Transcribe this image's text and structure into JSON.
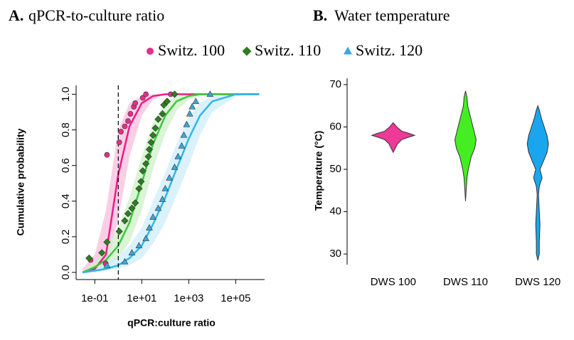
{
  "chart_data": [
    {
      "type": "scatter",
      "panel_label": "A.",
      "title": "qPCR-to-culture ratio",
      "xlabel": "qPCR:culture ratio",
      "ylabel": "Cumulative probability",
      "xscale": "log",
      "xlim": [
        0.016,
        1700000
      ],
      "xticks": [
        {
          "value": 0.1,
          "label": "1e-01"
        },
        {
          "value": 10,
          "label": "1e+01"
        },
        {
          "value": 1000,
          "label": "1e+03"
        },
        {
          "value": 100000,
          "label": "1e+05"
        }
      ],
      "ylim": [
        -0.04,
        1.05
      ],
      "yticks": [
        {
          "value": 0,
          "label": "0.0"
        },
        {
          "value": 0.2,
          "label": "0.2"
        },
        {
          "value": 0.4,
          "label": "0.4"
        },
        {
          "value": 0.6,
          "label": "0.6"
        },
        {
          "value": 0.8,
          "label": "0.8"
        },
        {
          "value": 1,
          "label": "1.0"
        }
      ],
      "reference_x": 1,
      "fit_x": [
        0.03,
        0.1,
        0.3,
        1,
        3,
        10,
        30,
        100,
        300,
        1000,
        3000,
        10000,
        100000,
        1000000
      ],
      "series": [
        {
          "name": "Switz. 100",
          "marker": "circle",
          "color": "#e0308a",
          "line_color": "#ee1b8a",
          "band_color": "#f8bfdc",
          "x": [
            0.066,
            0.29,
            0.33,
            1.1,
            1.3,
            1.9,
            2.6,
            3.3,
            4.6,
            5.3,
            11,
            15,
            170
          ],
          "values": [
            0.07,
            0.05,
            0.66,
            0.73,
            0.79,
            0.82,
            0.85,
            0.89,
            0.93,
            0.95,
            0.98,
            1,
            1
          ],
          "fit": [
            0,
            0.02,
            0.1,
            0.55,
            0.82,
            0.95,
            0.99,
            1,
            1,
            1,
            1,
            1,
            1,
            1
          ],
          "fit_lower": [
            0,
            0,
            0.02,
            0.3,
            0.65,
            0.88,
            0.97,
            1,
            1,
            1,
            1,
            1,
            1,
            1
          ],
          "fit_upper": [
            0.02,
            0.1,
            0.35,
            0.8,
            0.95,
            0.99,
            1,
            1,
            1,
            1,
            1,
            1,
            1,
            1
          ]
        },
        {
          "name": "Switz. 110",
          "marker": "diamond",
          "color": "#2e7d1f",
          "line_color": "#3fc53f",
          "band_color": "#cdf0c8",
          "x": [
            0.057,
            0.2,
            0.33,
            1.1,
            1.9,
            2.6,
            3.8,
            5.3,
            7.6,
            9.3,
            11,
            15,
            19,
            21,
            25,
            30,
            38,
            50,
            76,
            87,
            120,
            250
          ],
          "values": [
            0.08,
            0.11,
            0.17,
            0.23,
            0.29,
            0.33,
            0.36,
            0.39,
            0.47,
            0.51,
            0.57,
            0.61,
            0.65,
            0.69,
            0.73,
            0.77,
            0.81,
            0.86,
            0.89,
            0.94,
            0.96,
            1
          ],
          "fit": [
            0,
            0.03,
            0.07,
            0.15,
            0.28,
            0.5,
            0.72,
            0.88,
            0.96,
            0.99,
            1,
            1,
            1,
            1
          ],
          "fit_lower": [
            0,
            0.01,
            0.03,
            0.08,
            0.17,
            0.35,
            0.58,
            0.78,
            0.91,
            0.97,
            0.99,
            1,
            1,
            1
          ],
          "fit_upper": [
            0.01,
            0.06,
            0.13,
            0.25,
            0.42,
            0.65,
            0.84,
            0.95,
            0.99,
            1,
            1,
            1,
            1,
            1
          ]
        },
        {
          "name": "Switz. 120",
          "marker": "triangle",
          "color": "#39a9dc",
          "line_color": "#33b5e8",
          "band_color": "#cdeefb",
          "x": [
            0.33,
            1.9,
            3.8,
            7.6,
            15,
            21,
            30,
            50,
            76,
            100,
            150,
            250,
            350,
            500,
            620,
            810,
            1100,
            1400,
            2000,
            8100
          ],
          "values": [
            0.04,
            0.06,
            0.11,
            0.15,
            0.19,
            0.25,
            0.31,
            0.36,
            0.41,
            0.47,
            0.53,
            0.59,
            0.65,
            0.71,
            0.77,
            0.83,
            0.89,
            0.93,
            0.96,
            1
          ],
          "fit": [
            0,
            0.01,
            0.02,
            0.04,
            0.08,
            0.15,
            0.27,
            0.42,
            0.58,
            0.75,
            0.88,
            0.96,
            1,
            1
          ],
          "fit_lower": [
            0,
            0,
            0.01,
            0.02,
            0.04,
            0.08,
            0.16,
            0.28,
            0.43,
            0.6,
            0.77,
            0.9,
            0.99,
            1
          ],
          "fit_upper": [
            0.01,
            0.03,
            0.05,
            0.09,
            0.15,
            0.25,
            0.4,
            0.56,
            0.72,
            0.87,
            0.95,
            0.99,
            1,
            1
          ]
        }
      ]
    },
    {
      "type": "violin",
      "panel_label": "B.",
      "title": "Water temperature",
      "ylabel": "Temperature (°C)",
      "categories": [
        "DWS 100",
        "DWS 110",
        "DWS 120"
      ],
      "ylim": [
        27.5,
        71.5
      ],
      "yticks": [
        30,
        40,
        50,
        60,
        70
      ],
      "series": [
        {
          "color": "#ee3a96",
          "y": [
            54,
            55,
            56,
            57,
            57.5,
            58,
            58.5,
            59,
            60,
            61
          ],
          "density": [
            0,
            0.1,
            0.2,
            0.4,
            0.67,
            1,
            0.73,
            0.4,
            0.17,
            0
          ]
        },
        {
          "color": "#44ee22",
          "y": [
            42.5,
            45,
            48,
            50,
            53,
            55,
            57,
            59,
            61,
            63,
            65,
            67,
            68.5
          ],
          "density": [
            0,
            0.03,
            0.07,
            0.13,
            0.27,
            0.43,
            0.5,
            0.4,
            0.3,
            0.2,
            0.1,
            0.07,
            0
          ]
        },
        {
          "color": "#1aa6ee",
          "y": [
            28.5,
            30,
            33,
            37,
            40,
            44,
            46,
            48,
            50,
            52,
            54,
            56,
            58,
            60,
            62,
            64,
            65
          ],
          "density": [
            0,
            0.07,
            0.07,
            0.1,
            0.07,
            0.03,
            0.07,
            0.2,
            0.1,
            0.27,
            0.43,
            0.5,
            0.43,
            0.3,
            0.17,
            0.07,
            0
          ]
        }
      ]
    }
  ]
}
